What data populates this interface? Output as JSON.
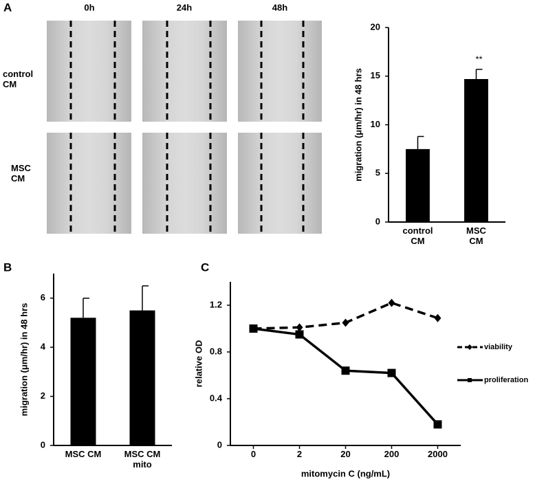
{
  "panels": [
    "A",
    "B",
    "C"
  ],
  "micrographs": {
    "columns": [
      "0h",
      "24h",
      "48h"
    ],
    "rows": [
      "control CM",
      "MSC CM"
    ]
  },
  "chart_data": [
    {
      "type": "bar",
      "ylabel": "migration (μm/hr) in 48 hrs",
      "categories": [
        "control CM",
        "MSC CM"
      ],
      "values": [
        7.5,
        14.7
      ],
      "errors": [
        1.3,
        1.0
      ],
      "annotation": "**",
      "color": "#000000",
      "ylim": [
        0,
        20
      ],
      "yticks": [
        0,
        5,
        10,
        15,
        20
      ],
      "grid": false
    },
    {
      "type": "bar",
      "ylabel": "migration (μm/hr) in 48 hrs",
      "categories": [
        "MSC CM",
        "MSC CM mito"
      ],
      "values": [
        5.2,
        5.5
      ],
      "errors": [
        0.8,
        1.0
      ],
      "color": "#000000",
      "ylim": [
        0,
        7
      ],
      "yticks": [
        0,
        2,
        4,
        6
      ],
      "grid": false
    },
    {
      "type": "line",
      "xlabel": "mitomycin C (ng/mL)",
      "ylabel": "relative OD",
      "categories": [
        "0",
        "2",
        "20",
        "200",
        "2000"
      ],
      "series": [
        {
          "name": "viability",
          "color": "#000000",
          "dash": true,
          "marker": "diamond",
          "values": [
            1.0,
            1.01,
            1.05,
            1.22,
            1.09
          ]
        },
        {
          "name": "proliferation",
          "color": "#000000",
          "dash": false,
          "marker": "square",
          "values": [
            1.0,
            0.95,
            0.64,
            0.62,
            0.18
          ]
        }
      ],
      "ylim": [
        0,
        1.4
      ],
      "yticks": [
        0,
        0.4,
        0.8,
        1.2
      ],
      "grid": false,
      "legend": "right"
    }
  ]
}
